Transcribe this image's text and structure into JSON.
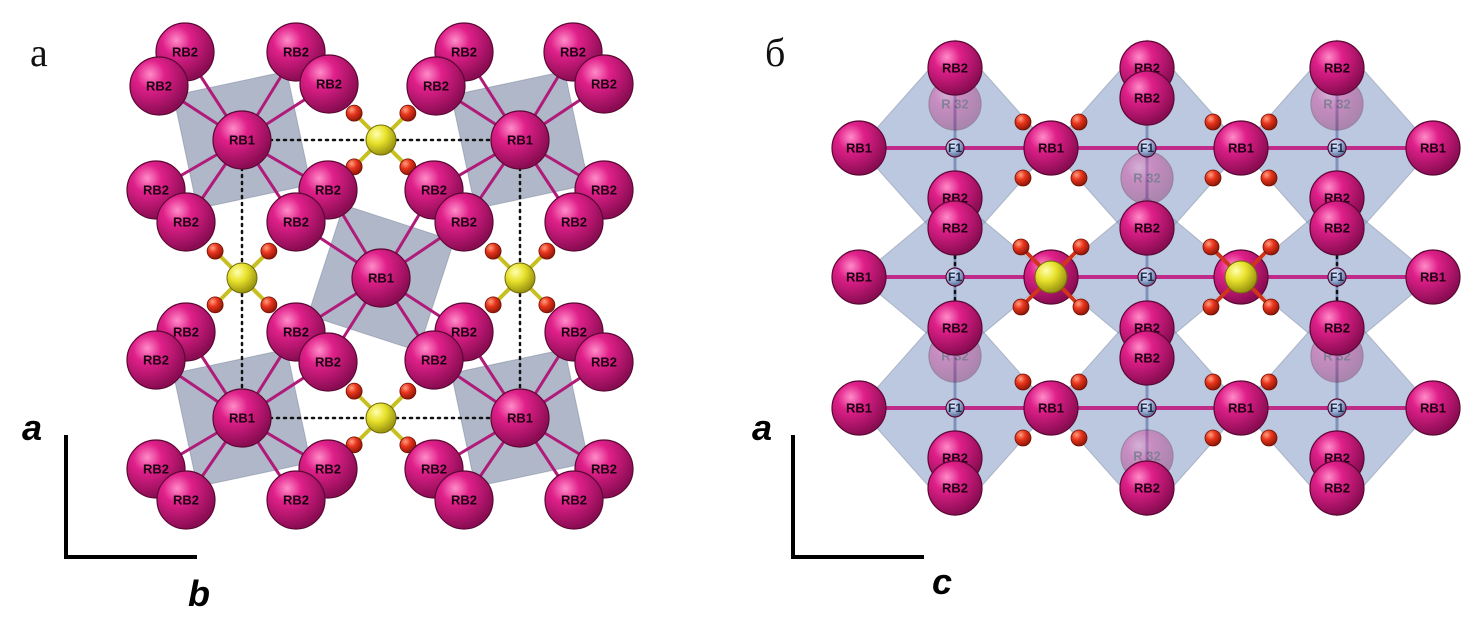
{
  "panels": [
    {
      "id": "a",
      "label": "а",
      "axis_vertical": "a",
      "axis_horizontal": "b",
      "atom_labels": {
        "rb1": "RB1",
        "rb2": "RB2"
      }
    },
    {
      "id": "b",
      "label": "б",
      "axis_vertical": "a",
      "axis_horizontal": "c",
      "atom_labels": {
        "rb1": "RB1",
        "rb2": "RB2",
        "f1": "F1"
      }
    }
  ],
  "colors": {
    "rb": "#d4127a",
    "rb_dark": "#7a0a45",
    "sulfur": "#e6e02a",
    "oxygen": "#e0301a",
    "polyhedron_panel_a": "#7e8aa6",
    "polyhedron_panel_b": "#8fa3cc",
    "fluorine": "#8aa0c8",
    "axis": "#000000"
  }
}
